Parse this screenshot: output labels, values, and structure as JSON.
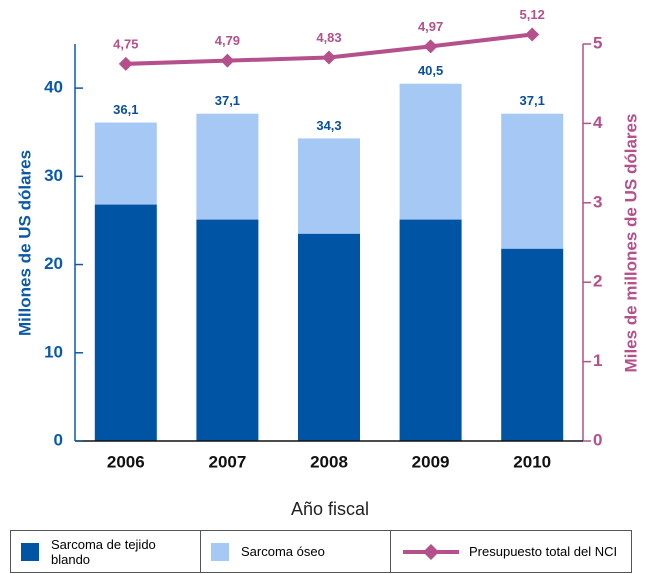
{
  "chart_data": {
    "type": "bar",
    "categories": [
      "2006",
      "2007",
      "2008",
      "2009",
      "2010"
    ],
    "series": [
      {
        "name": "Sarcoma de tejido blando",
        "color": "#0054a4",
        "values": [
          26.8,
          25.1,
          23.5,
          25.1,
          21.8
        ]
      },
      {
        "name": "Sarcoma óseo",
        "color": "#a6c8f5",
        "values": [
          9.3,
          12.0,
          10.8,
          15.4,
          15.3
        ]
      },
      {
        "name": "Presupuesto total del NCI",
        "color": "#b4508c",
        "type": "line",
        "axis": "y2",
        "values": [
          4.75,
          4.79,
          4.83,
          4.97,
          5.12
        ],
        "value_labels": [
          "4,75",
          "4,79",
          "4,83",
          "4,97",
          "5,12"
        ]
      }
    ],
    "totals": [
      36.1,
      37.1,
      34.3,
      40.5,
      37.1
    ],
    "total_labels": [
      "36,1",
      "37,1",
      "34,3",
      "40,5",
      "37,1"
    ],
    "xlabel": "Año fiscal",
    "ylabel": "Millones de US dólares",
    "y2label": "Miles de millones de US dólares",
    "ylim": [
      0,
      45
    ],
    "yticks": [
      0,
      10,
      20,
      30,
      40
    ],
    "y2lim": [
      0,
      5
    ],
    "y2ticks": [
      0,
      1,
      2,
      3,
      4,
      5
    ]
  }
}
